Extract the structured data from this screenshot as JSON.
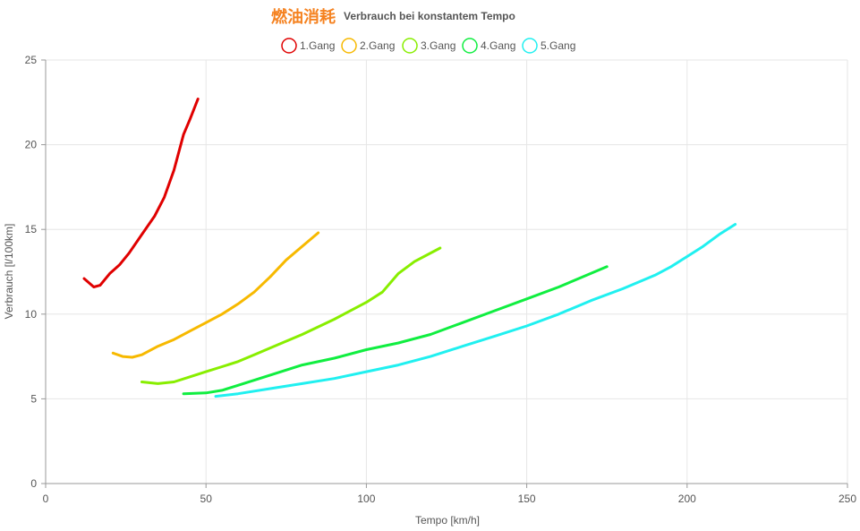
{
  "chart_data": {
    "type": "line",
    "title": "燃油消耗",
    "subtitle": "Verbrauch bei konstantem Tempo",
    "xlabel": "Tempo [km/h]",
    "ylabel": "Verbrauch [l/100km]",
    "xlim": [
      0,
      250
    ],
    "ylim": [
      0,
      25
    ],
    "x_ticks": [
      "0",
      "50",
      "100",
      "150",
      "200",
      "250"
    ],
    "y_ticks": [
      "0",
      "5",
      "10",
      "15",
      "20",
      "25"
    ],
    "grid": true,
    "legend_position": "top",
    "title_color": "#f58220",
    "series": [
      {
        "name": "1.Gang",
        "color": "#e00000",
        "points": [
          [
            12,
            12.1
          ],
          [
            15,
            11.6
          ],
          [
            17,
            11.7
          ],
          [
            20,
            12.4
          ],
          [
            23,
            12.9
          ],
          [
            26,
            13.6
          ],
          [
            30,
            14.7
          ],
          [
            34,
            15.8
          ],
          [
            37,
            16.9
          ],
          [
            40,
            18.5
          ],
          [
            43,
            20.6
          ],
          [
            45,
            21.5
          ],
          [
            47.5,
            22.7
          ]
        ]
      },
      {
        "name": "2.Gang",
        "color": "#f7b900",
        "points": [
          [
            21,
            7.7
          ],
          [
            24,
            7.5
          ],
          [
            27,
            7.45
          ],
          [
            30,
            7.6
          ],
          [
            35,
            8.1
          ],
          [
            40,
            8.5
          ],
          [
            45,
            9.0
          ],
          [
            50,
            9.5
          ],
          [
            55,
            10.0
          ],
          [
            60,
            10.6
          ],
          [
            65,
            11.3
          ],
          [
            70,
            12.2
          ],
          [
            75,
            13.2
          ],
          [
            80,
            14.0
          ],
          [
            85,
            14.8
          ]
        ]
      },
      {
        "name": "3.Gang",
        "color": "#88ee00",
        "points": [
          [
            30,
            6.0
          ],
          [
            35,
            5.9
          ],
          [
            40,
            6.0
          ],
          [
            45,
            6.3
          ],
          [
            50,
            6.6
          ],
          [
            55,
            6.9
          ],
          [
            60,
            7.2
          ],
          [
            65,
            7.6
          ],
          [
            70,
            8.0
          ],
          [
            80,
            8.8
          ],
          [
            90,
            9.7
          ],
          [
            100,
            10.7
          ],
          [
            105,
            11.3
          ],
          [
            110,
            12.4
          ],
          [
            115,
            13.1
          ],
          [
            123,
            13.9
          ]
        ]
      },
      {
        "name": "4.Gang",
        "color": "#10ee40",
        "points": [
          [
            43,
            5.3
          ],
          [
            50,
            5.35
          ],
          [
            55,
            5.5
          ],
          [
            60,
            5.8
          ],
          [
            70,
            6.4
          ],
          [
            80,
            7.0
          ],
          [
            90,
            7.4
          ],
          [
            100,
            7.9
          ],
          [
            110,
            8.3
          ],
          [
            120,
            8.8
          ],
          [
            130,
            9.5
          ],
          [
            140,
            10.2
          ],
          [
            150,
            10.9
          ],
          [
            160,
            11.6
          ],
          [
            175,
            12.8
          ]
        ]
      },
      {
        "name": "5.Gang",
        "color": "#20f0f0",
        "points": [
          [
            53,
            5.15
          ],
          [
            60,
            5.3
          ],
          [
            70,
            5.6
          ],
          [
            80,
            5.9
          ],
          [
            90,
            6.2
          ],
          [
            100,
            6.6
          ],
          [
            110,
            7.0
          ],
          [
            120,
            7.5
          ],
          [
            130,
            8.1
          ],
          [
            140,
            8.7
          ],
          [
            150,
            9.3
          ],
          [
            160,
            10.0
          ],
          [
            170,
            10.8
          ],
          [
            180,
            11.5
          ],
          [
            190,
            12.3
          ],
          [
            195,
            12.8
          ],
          [
            200,
            13.4
          ],
          [
            205,
            14.0
          ],
          [
            210,
            14.7
          ],
          [
            215,
            15.3
          ]
        ]
      }
    ]
  }
}
